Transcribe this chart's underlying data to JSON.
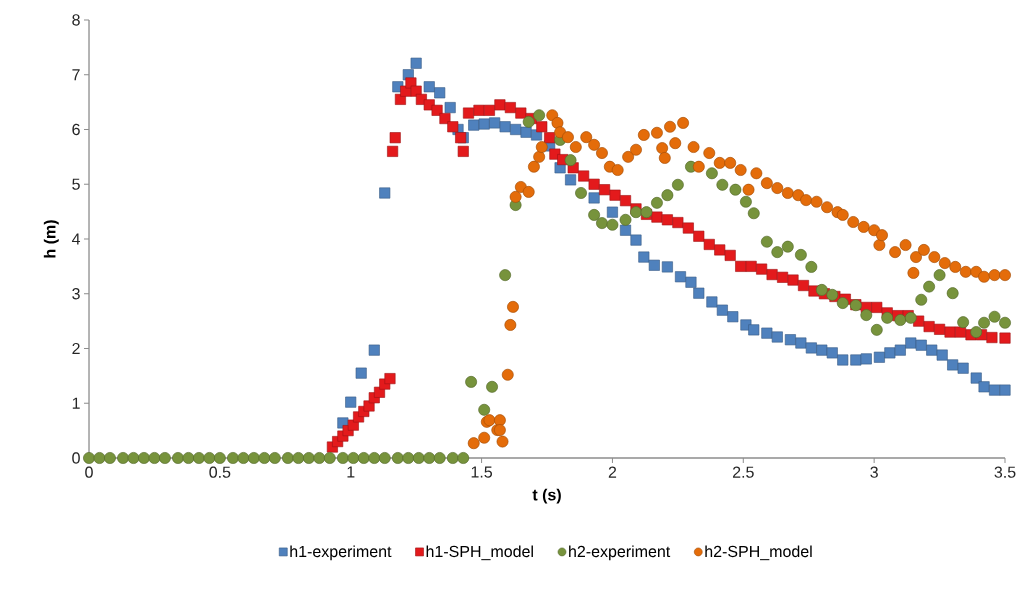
{
  "chart_data": {
    "type": "scatter",
    "xlabel": "t (s)",
    "ylabel": "h (m)",
    "xlim": [
      0,
      3.5
    ],
    "ylim": [
      0,
      8
    ],
    "xticks": [
      0,
      0.5,
      1,
      1.5,
      2,
      2.5,
      3,
      3.5
    ],
    "yticks": [
      0,
      1,
      2,
      3,
      4,
      5,
      6,
      7,
      8
    ],
    "legend": "bottom",
    "series": [
      {
        "name": "h1-experiment",
        "color": "#4f81bd",
        "marker": "square",
        "x": [
          0.97,
          1.0,
          1.04,
          1.09,
          1.13,
          1.18,
          1.22,
          1.25,
          1.3,
          1.34,
          1.38,
          1.41,
          1.43,
          1.47,
          1.51,
          1.55,
          1.59,
          1.63,
          1.67,
          1.71,
          1.76,
          1.8,
          1.84,
          1.93,
          2.0,
          2.05,
          2.09,
          2.12,
          2.16,
          2.21,
          2.26,
          2.3,
          2.33,
          2.38,
          2.42,
          2.46,
          2.51,
          2.54,
          2.59,
          2.63,
          2.68,
          2.72,
          2.76,
          2.8,
          2.84,
          2.88,
          2.93,
          2.97,
          3.02,
          3.06,
          3.1,
          3.14,
          3.18,
          3.22,
          3.26,
          3.3,
          3.34,
          3.39,
          3.42,
          3.46,
          3.5
        ],
        "values": [
          0.64,
          1.02,
          1.55,
          1.97,
          4.84,
          6.78,
          7.0,
          7.21,
          6.78,
          6.67,
          6.4,
          6.0,
          5.85,
          6.08,
          6.1,
          6.12,
          6.05,
          6.0,
          5.95,
          5.9,
          5.7,
          5.3,
          5.08,
          4.75,
          4.49,
          4.16,
          3.98,
          3.67,
          3.52,
          3.49,
          3.31,
          3.21,
          3.01,
          2.85,
          2.7,
          2.58,
          2.43,
          2.34,
          2.28,
          2.21,
          2.16,
          2.1,
          2.01,
          1.97,
          1.92,
          1.79,
          1.79,
          1.81,
          1.84,
          1.92,
          1.97,
          2.1,
          2.06,
          1.97,
          1.88,
          1.7,
          1.64,
          1.46,
          1.3,
          1.24,
          1.24
        ]
      },
      {
        "name": "h1-SPH_model",
        "color": "#e31a1c",
        "marker": "square",
        "x": [
          0.93,
          0.95,
          0.97,
          0.99,
          1.01,
          1.03,
          1.05,
          1.07,
          1.09,
          1.11,
          1.13,
          1.15,
          1.16,
          1.17,
          1.19,
          1.21,
          1.23,
          1.25,
          1.27,
          1.3,
          1.33,
          1.36,
          1.39,
          1.42,
          1.43,
          1.45,
          1.49,
          1.53,
          1.57,
          1.61,
          1.65,
          1.69,
          1.73,
          1.76,
          1.78,
          1.81,
          1.85,
          1.89,
          1.93,
          1.97,
          2.01,
          2.05,
          2.09,
          2.13,
          2.17,
          2.21,
          2.25,
          2.29,
          2.33,
          2.37,
          2.41,
          2.45,
          2.49,
          2.53,
          2.57,
          2.61,
          2.65,
          2.69,
          2.73,
          2.77,
          2.81,
          2.85,
          2.89,
          2.93,
          2.97,
          3.01,
          3.05,
          3.09,
          3.13,
          3.17,
          3.21,
          3.25,
          3.29,
          3.33,
          3.37,
          3.41,
          3.45,
          3.5
        ],
        "values": [
          0.2,
          0.3,
          0.4,
          0.5,
          0.6,
          0.75,
          0.85,
          0.95,
          1.1,
          1.2,
          1.35,
          1.45,
          5.6,
          5.85,
          6.55,
          6.7,
          6.85,
          6.7,
          6.55,
          6.45,
          6.35,
          6.2,
          6.05,
          5.85,
          5.6,
          6.3,
          6.35,
          6.35,
          6.45,
          6.4,
          6.3,
          6.2,
          6.05,
          5.85,
          5.55,
          5.45,
          5.3,
          5.15,
          5.0,
          4.9,
          4.8,
          4.7,
          4.55,
          4.45,
          4.4,
          4.35,
          4.3,
          4.2,
          4.05,
          3.9,
          3.8,
          3.7,
          3.5,
          3.5,
          3.45,
          3.35,
          3.3,
          3.25,
          3.15,
          3.05,
          3.0,
          2.95,
          2.9,
          2.8,
          2.75,
          2.75,
          2.65,
          2.6,
          2.6,
          2.5,
          2.4,
          2.35,
          2.3,
          2.3,
          2.25,
          2.25,
          2.2,
          2.19
        ]
      },
      {
        "name": "h2-experiment",
        "color": "#77933c",
        "marker": "circle",
        "x": [
          0,
          0.04,
          0.08,
          0.13,
          0.17,
          0.21,
          0.25,
          0.29,
          0.34,
          0.38,
          0.42,
          0.46,
          0.5,
          0.55,
          0.59,
          0.63,
          0.67,
          0.71,
          0.76,
          0.8,
          0.84,
          0.88,
          0.92,
          0.97,
          1.01,
          1.05,
          1.09,
          1.13,
          1.18,
          1.22,
          1.26,
          1.3,
          1.34,
          1.39,
          1.43,
          1.46,
          1.51,
          1.54,
          1.59,
          1.63,
          1.68,
          1.72,
          1.8,
          1.84,
          1.88,
          1.93,
          1.96,
          2.0,
          2.05,
          2.09,
          2.13,
          2.17,
          2.21,
          2.25,
          2.3,
          2.38,
          2.42,
          2.47,
          2.51,
          2.54,
          2.59,
          2.63,
          2.67,
          2.72,
          2.76,
          2.8,
          2.84,
          2.88,
          2.93,
          2.97,
          3.01,
          3.05,
          3.1,
          3.14,
          3.18,
          3.21,
          3.25,
          3.3,
          3.34,
          3.39,
          3.42,
          3.46,
          3.5
        ],
        "values": [
          0,
          0,
          0,
          0,
          0,
          0,
          0,
          0,
          0,
          0,
          0,
          0,
          0,
          0,
          0,
          0,
          0,
          0,
          0,
          0,
          0,
          0,
          0,
          0,
          0,
          0,
          0,
          0,
          0,
          0,
          0,
          0,
          0,
          0,
          0,
          1.39,
          0.88,
          1.3,
          3.34,
          4.62,
          6.14,
          6.26,
          5.81,
          5.44,
          4.84,
          4.44,
          4.29,
          4.26,
          4.35,
          4.49,
          4.49,
          4.66,
          4.8,
          4.99,
          5.32,
          5.2,
          4.99,
          4.9,
          4.68,
          4.47,
          3.95,
          3.76,
          3.86,
          3.71,
          3.49,
          3.07,
          2.98,
          2.83,
          2.79,
          2.61,
          2.34,
          2.56,
          2.52,
          2.56,
          2.89,
          3.13,
          3.34,
          3.01,
          2.48,
          2.3,
          2.47,
          2.58,
          2.47
        ]
      },
      {
        "name": "h2-SPH_model",
        "color": "#e46c0a",
        "marker": "circle",
        "x": [
          1.47,
          1.51,
          1.52,
          1.53,
          1.56,
          1.57,
          1.57,
          1.58,
          1.6,
          1.61,
          1.62,
          1.63,
          1.65,
          1.68,
          1.7,
          1.72,
          1.73,
          1.77,
          1.79,
          1.8,
          1.83,
          1.86,
          1.9,
          1.93,
          1.96,
          1.99,
          2.02,
          2.06,
          2.09,
          2.12,
          2.17,
          2.19,
          2.2,
          2.22,
          2.24,
          2.27,
          2.31,
          2.33,
          2.37,
          2.41,
          2.45,
          2.49,
          2.52,
          2.55,
          2.59,
          2.63,
          2.67,
          2.71,
          2.74,
          2.78,
          2.82,
          2.86,
          2.88,
          2.92,
          2.96,
          3.0,
          3.02,
          3.03,
          3.08,
          3.12,
          3.15,
          3.16,
          3.19,
          3.23,
          3.27,
          3.31,
          3.35,
          3.39,
          3.42,
          3.46,
          3.5
        ],
        "values": [
          0.27,
          0.37,
          0.66,
          0.69,
          0.51,
          0.69,
          0.51,
          0.3,
          1.52,
          2.43,
          2.76,
          4.77,
          4.95,
          4.86,
          5.32,
          5.5,
          5.68,
          6.26,
          6.12,
          5.95,
          5.86,
          5.68,
          5.86,
          5.72,
          5.57,
          5.32,
          5.26,
          5.5,
          5.63,
          5.9,
          5.94,
          5.66,
          5.48,
          6.05,
          5.75,
          6.12,
          5.68,
          5.32,
          5.57,
          5.39,
          5.39,
          5.26,
          4.9,
          5.2,
          5.02,
          4.93,
          4.84,
          4.8,
          4.71,
          4.68,
          4.58,
          4.49,
          4.44,
          4.31,
          4.22,
          4.16,
          3.89,
          4.07,
          3.76,
          3.89,
          3.38,
          3.67,
          3.8,
          3.67,
          3.56,
          3.49,
          3.4,
          3.4,
          3.31,
          3.34,
          3.34
        ]
      }
    ]
  }
}
